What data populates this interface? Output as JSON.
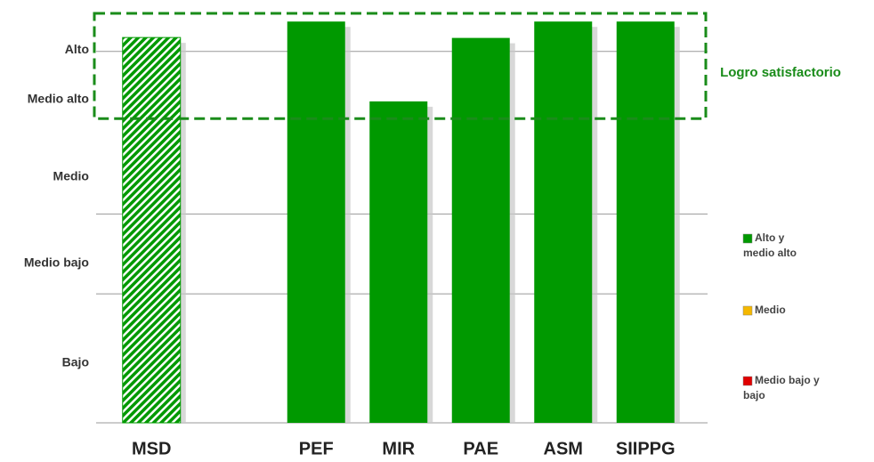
{
  "chart_data": {
    "type": "bar",
    "categories": [
      "MSD",
      null,
      "PEF",
      "MIR",
      "PAE",
      "ASM",
      "SIIPPG"
    ],
    "values": [
      94.1,
      null,
      98,
      78.5,
      94,
      98,
      98
    ],
    "hatched": [
      true,
      false,
      false,
      false,
      false,
      false,
      false
    ],
    "color": "#009900",
    "ylim": [
      0,
      100
    ],
    "yticks": [
      {
        "value": 14.6,
        "label": "Bajo"
      },
      {
        "value": 39,
        "label": "Medio bajo"
      },
      {
        "value": 60,
        "label": "Medio"
      },
      {
        "value": 79,
        "label": "Medio  alto"
      },
      {
        "value": 91,
        "label": "Alto"
      }
    ],
    "gridlines": [
      0,
      31.5,
      51,
      90.7
    ],
    "target_band": {
      "label": "Logro satisfactorio",
      "range": [
        74.3,
        100
      ],
      "color": "#1a8c1a"
    },
    "legend": [
      {
        "lines": [
          "Alto y",
          "medio alto"
        ],
        "color": "#009900"
      },
      {
        "lines": [
          "Medio"
        ],
        "color": "#f5b800"
      },
      {
        "lines": [
          "Medio bajo y",
          "bajo"
        ],
        "color": "#e00000"
      }
    ]
  }
}
